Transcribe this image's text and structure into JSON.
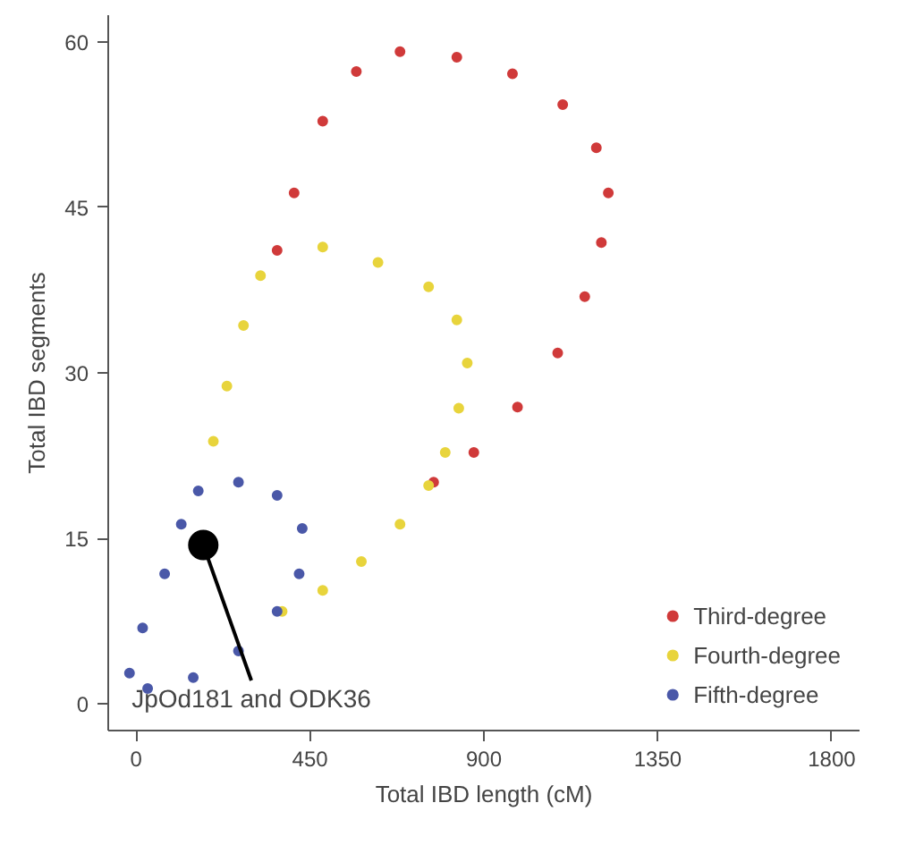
{
  "chart_data": {
    "type": "scatter",
    "xlabel": "Total IBD length (cM)",
    "ylabel": "Total IBD segments",
    "xlim": [
      -72,
      1872
    ],
    "ylim": [
      -2.4,
      62.4
    ],
    "xticks": [
      0,
      450,
      900,
      1350,
      1800
    ],
    "yticks": [
      0,
      15,
      30,
      45,
      60
    ],
    "grid": false,
    "legend": "bottom right",
    "marker": "circle",
    "series": [
      {
        "name": "Third-degree",
        "color": "#d03a3a",
        "x": [
          365,
          409,
          483,
          570,
          683,
          830,
          974,
          1104,
          1191,
          1222,
          1204,
          1161,
          1091,
          987,
          874,
          770
        ],
        "values": [
          41.1,
          46.3,
          52.8,
          57.3,
          59.1,
          58.6,
          57.1,
          54.3,
          50.4,
          46.3,
          41.8,
          36.9,
          31.8,
          26.9,
          22.8,
          20.1
        ]
      },
      {
        "name": "Fourth-degree",
        "color": "#e8d43c",
        "x": [
          483,
          626,
          757,
          830,
          857,
          835,
          800,
          757,
          683,
          583,
          483,
          378,
          200,
          235,
          278,
          322
        ],
        "values": [
          41.4,
          40.0,
          37.8,
          34.8,
          30.9,
          26.8,
          22.8,
          19.8,
          16.3,
          12.9,
          10.3,
          8.4,
          23.8,
          28.8,
          34.3,
          38.8
        ]
      },
      {
        "name": "Fifth-degree",
        "color": "#4a58a8",
        "x": [
          161,
          265,
          365,
          430,
          422,
          365,
          265,
          148,
          30,
          -17,
          17,
          74,
          117
        ],
        "values": [
          19.3,
          20.1,
          18.9,
          15.9,
          11.8,
          8.4,
          4.8,
          2.4,
          1.4,
          2.8,
          6.9,
          11.8,
          16.3
        ]
      },
      {
        "color": "#000000",
        "x": [
          174
        ],
        "values": [
          14.4
        ]
      }
    ],
    "annotations": [
      {
        "text": "JpOd181 and ODK36",
        "x": 174,
        "y": 14.4
      }
    ]
  }
}
